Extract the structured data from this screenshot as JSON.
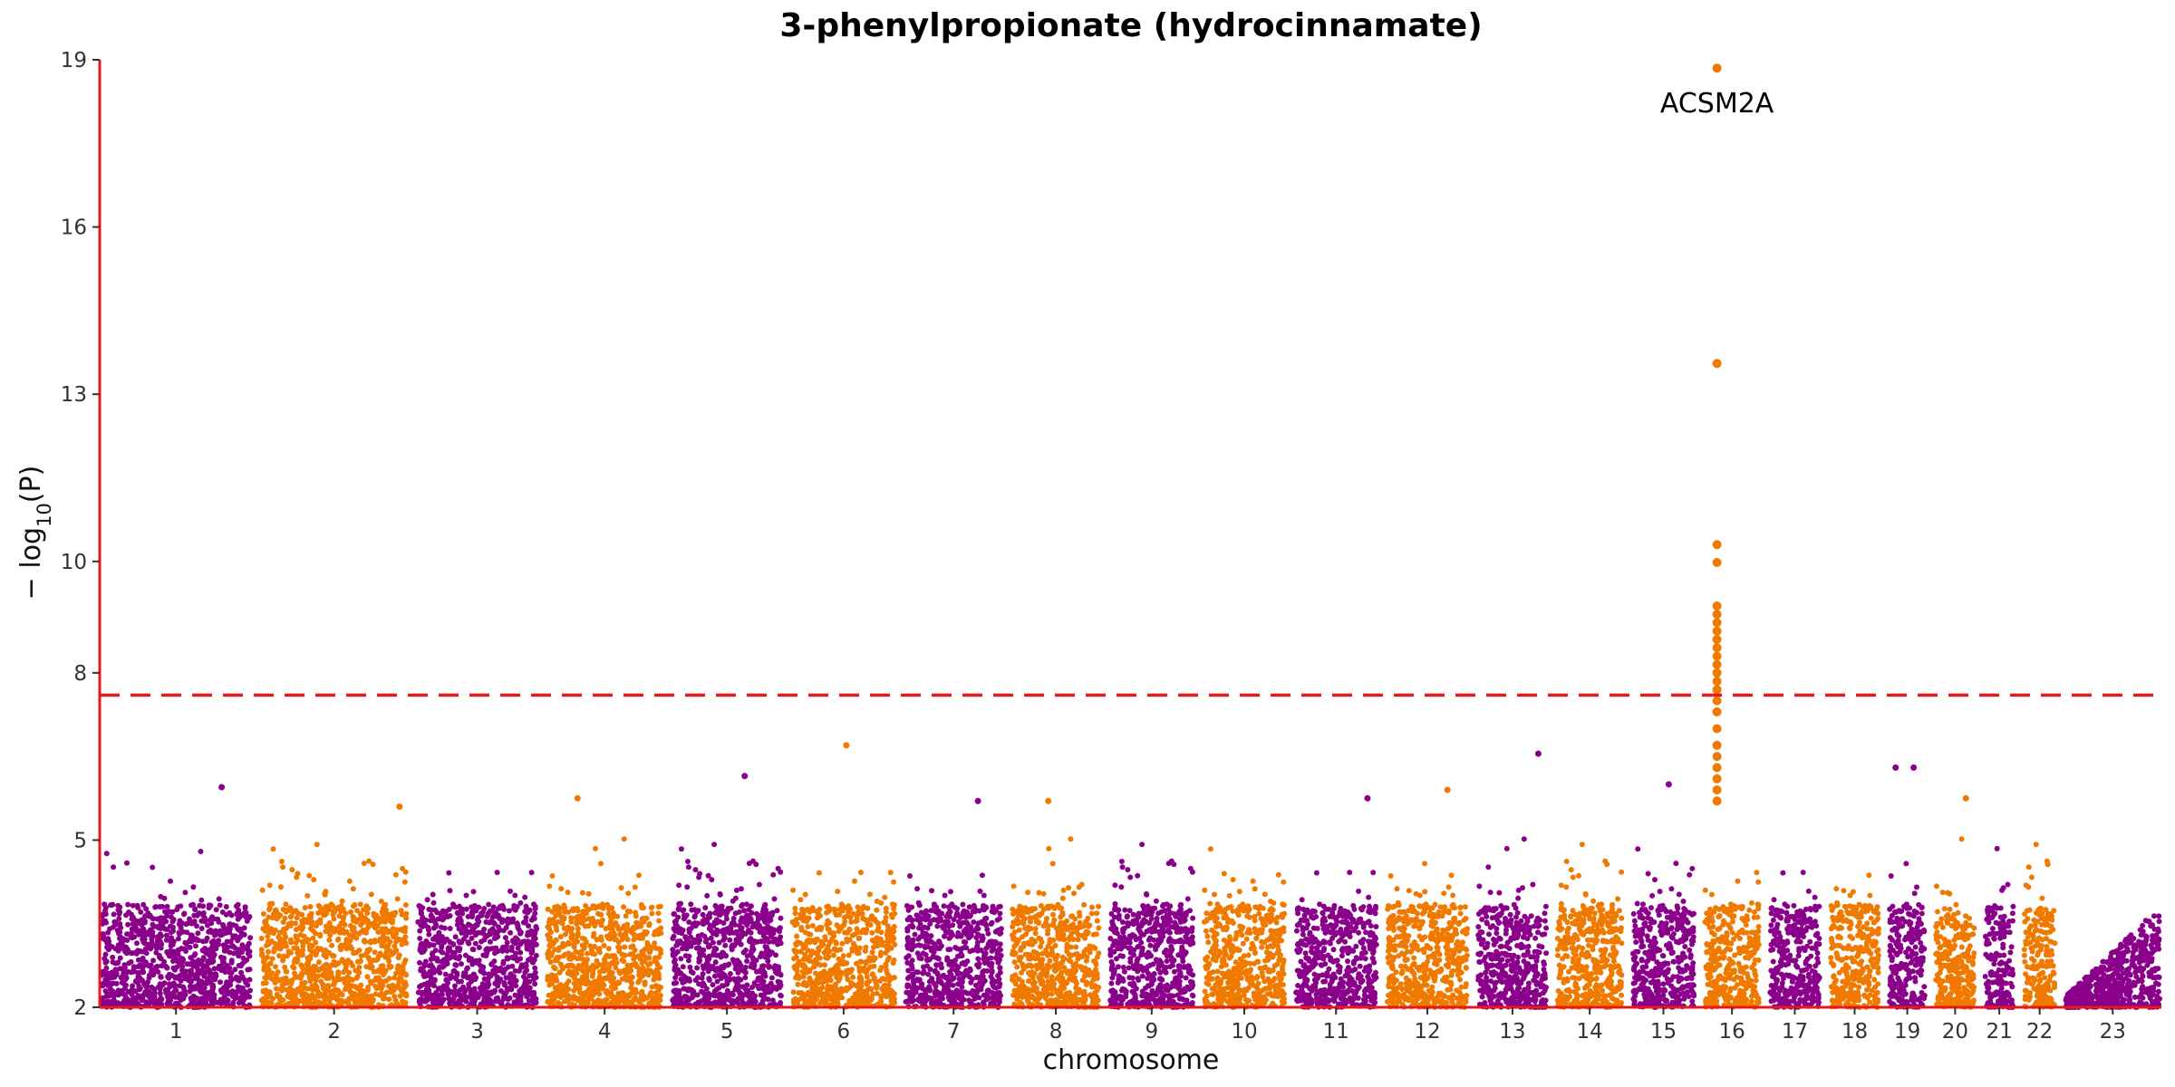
{
  "chart_data": {
    "type": "scatter",
    "title": "3-phenylpropionate (hydrocinnamate)",
    "xlabel": "chromosome",
    "ylabel": "− log10(P)",
    "ylabel_main": "− log",
    "ylabel_sub": "10",
    "ylabel_tail": "(P)",
    "ylim": [
      2,
      19
    ],
    "yticks": [
      2,
      5,
      8,
      10,
      13,
      16,
      19
    ],
    "threshold": 7.6,
    "colors": {
      "odd": "#8b008b",
      "even": "#f07a00",
      "axis": "#e41a1c",
      "threshold": "#e41a1c"
    },
    "chromosomes": [
      {
        "label": "1",
        "len": 248
      },
      {
        "label": "2",
        "len": 242
      },
      {
        "label": "3",
        "len": 198
      },
      {
        "label": "4",
        "len": 190
      },
      {
        "label": "5",
        "len": 181
      },
      {
        "label": "6",
        "len": 171
      },
      {
        "label": "7",
        "len": 159
      },
      {
        "label": "8",
        "len": 145
      },
      {
        "label": "9",
        "len": 138
      },
      {
        "label": "10",
        "len": 134
      },
      {
        "label": "11",
        "len": 135
      },
      {
        "label": "12",
        "len": 133
      },
      {
        "label": "13",
        "len": 114
      },
      {
        "label": "14",
        "len": 107
      },
      {
        "label": "15",
        "len": 102
      },
      {
        "label": "16",
        "len": 90
      },
      {
        "label": "17",
        "len": 83
      },
      {
        "label": "18",
        "len": 80
      },
      {
        "label": "19",
        "len": 59
      },
      {
        "label": "20",
        "len": 64
      },
      {
        "label": "21",
        "len": 47
      },
      {
        "label": "22",
        "len": 51
      },
      {
        "label": "23",
        "len": 156
      }
    ],
    "peak_points": [
      {
        "chr": "16",
        "pos": 20,
        "y": 18.85
      },
      {
        "chr": "16",
        "pos": 20,
        "y": 13.55
      },
      {
        "chr": "16",
        "pos": 20,
        "y": 10.3
      },
      {
        "chr": "16",
        "pos": 20,
        "y": 9.98
      },
      {
        "chr": "16",
        "pos": 20,
        "y": 9.2
      },
      {
        "chr": "16",
        "pos": 20,
        "y": 9.05
      },
      {
        "chr": "16",
        "pos": 20,
        "y": 8.9
      },
      {
        "chr": "16",
        "pos": 20,
        "y": 8.75
      },
      {
        "chr": "16",
        "pos": 20,
        "y": 8.6
      },
      {
        "chr": "16",
        "pos": 20,
        "y": 8.45
      },
      {
        "chr": "16",
        "pos": 20,
        "y": 8.3
      },
      {
        "chr": "16",
        "pos": 20,
        "y": 8.15
      },
      {
        "chr": "16",
        "pos": 20,
        "y": 8.0
      },
      {
        "chr": "16",
        "pos": 20,
        "y": 7.85
      },
      {
        "chr": "16",
        "pos": 20,
        "y": 7.7
      },
      {
        "chr": "16",
        "pos": 20,
        "y": 7.5
      },
      {
        "chr": "16",
        "pos": 20,
        "y": 7.3
      },
      {
        "chr": "16",
        "pos": 20,
        "y": 7.0
      },
      {
        "chr": "16",
        "pos": 20,
        "y": 6.7
      },
      {
        "chr": "16",
        "pos": 20,
        "y": 6.5
      },
      {
        "chr": "16",
        "pos": 20,
        "y": 6.3
      },
      {
        "chr": "16",
        "pos": 20,
        "y": 6.1
      },
      {
        "chr": "16",
        "pos": 20,
        "y": 5.9
      },
      {
        "chr": "16",
        "pos": 20,
        "y": 5.7
      }
    ],
    "notable_points": [
      {
        "chr": "1",
        "pos": 200,
        "y": 5.95
      },
      {
        "chr": "5",
        "pos": 120,
        "y": 6.15
      },
      {
        "chr": "6",
        "pos": 90,
        "y": 6.7
      },
      {
        "chr": "13",
        "pos": 100,
        "y": 6.55
      },
      {
        "chr": "15",
        "pos": 60,
        "y": 6.0
      },
      {
        "chr": "19",
        "pos": 10,
        "y": 6.3
      },
      {
        "chr": "19",
        "pos": 40,
        "y": 6.3
      },
      {
        "chr": "12",
        "pos": 100,
        "y": 5.9
      },
      {
        "chr": "11",
        "pos": 120,
        "y": 5.75
      },
      {
        "chr": "20",
        "pos": 50,
        "y": 5.75
      },
      {
        "chr": "4",
        "pos": 50,
        "y": 5.75
      },
      {
        "chr": "7",
        "pos": 120,
        "y": 5.7
      },
      {
        "chr": "8",
        "pos": 60,
        "y": 5.7
      },
      {
        "chr": "2",
        "pos": 230,
        "y": 5.6
      }
    ],
    "annotations": [
      {
        "text": "ACSM2A",
        "chr": "16",
        "pos": 20,
        "y": 18.35
      }
    ]
  }
}
